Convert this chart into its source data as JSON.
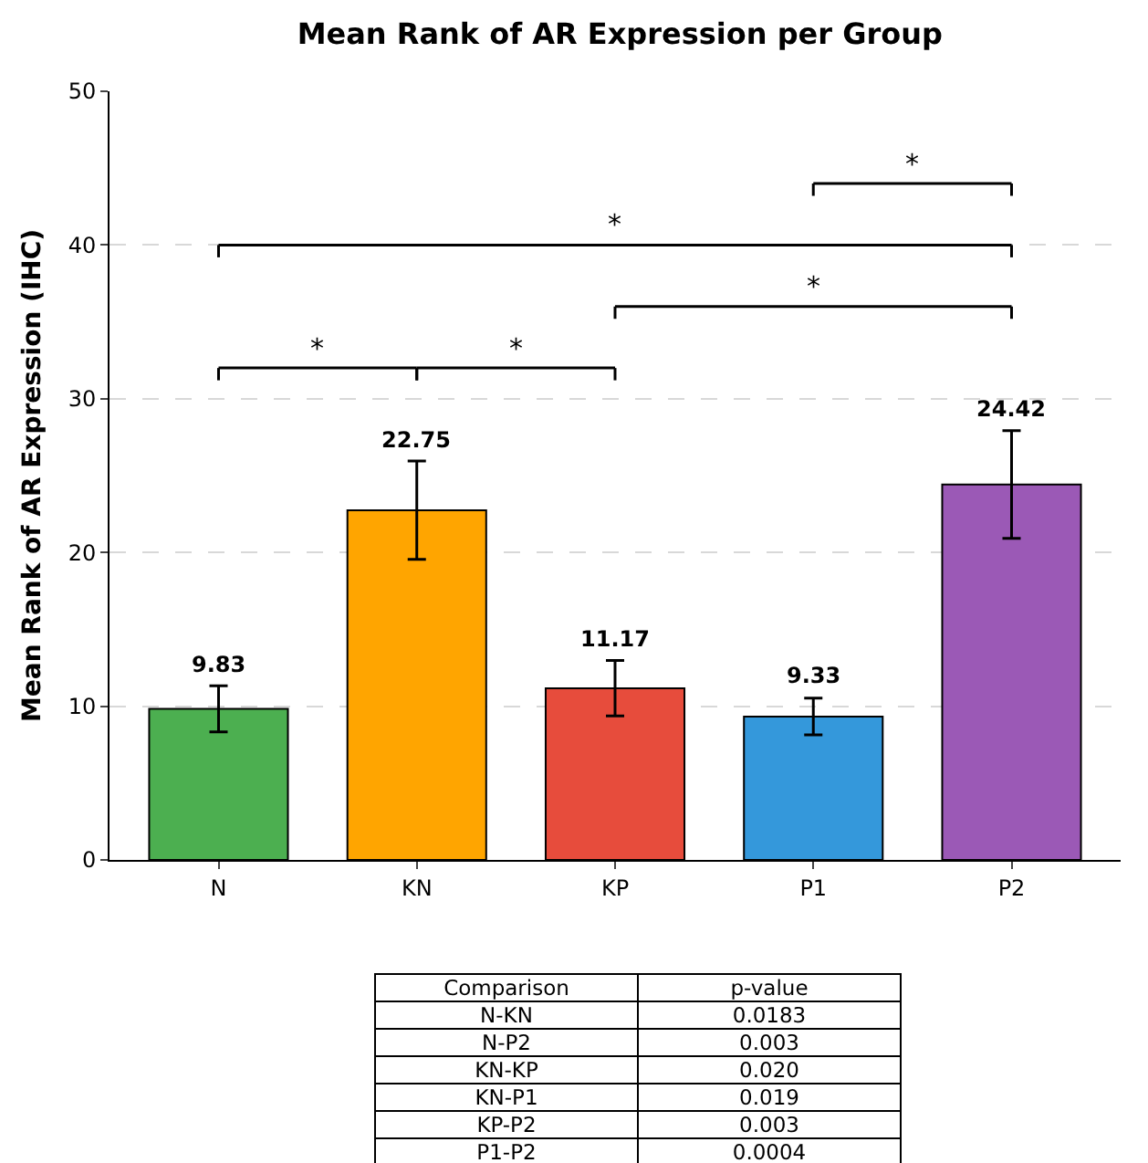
{
  "chart_data": {
    "type": "bar",
    "title": "Mean Rank of AR Expression per Group",
    "ylabel": "Mean Rank of AR Expression (IHC)",
    "categories": [
      "N",
      "KN",
      "KP",
      "P1",
      "P2"
    ],
    "values": [
      9.83,
      22.75,
      11.17,
      9.33,
      24.42
    ],
    "colors": [
      "#4caf50",
      "#ffa500",
      "#e74c3c",
      "#3498db",
      "#9b59b6"
    ],
    "errors": [
      1.5,
      3.2,
      1.8,
      1.2,
      3.5
    ],
    "data_labels": true,
    "ylim": [
      0,
      50
    ],
    "yticks": [
      0,
      10,
      20,
      30,
      40,
      50
    ],
    "grid": "y",
    "annotations": [
      "*",
      "*",
      "*",
      "*",
      "*",
      "Comparison",
      "p-value",
      "N-KN",
      "0.0183",
      "N-P2",
      "0.003",
      "KN-KP",
      "0.020",
      "KN-P1",
      "0.019",
      "KP-P2",
      "0.003",
      "P1-P2",
      "0.0004"
    ]
  }
}
